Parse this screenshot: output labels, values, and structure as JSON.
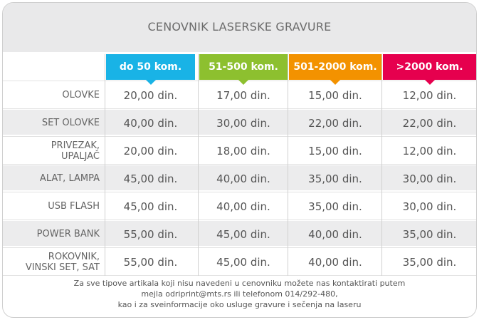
{
  "title": "CENOVNIK LASERSKE GRAVURE",
  "tiers": [
    {
      "label": "do 50 kom.",
      "color": "#19b3e6"
    },
    {
      "label": "51-500 kom.",
      "color": "#8dc02f"
    },
    {
      "label": "501-2000 kom.",
      "color": "#f39200"
    },
    {
      "label": ">2000 kom.",
      "color": "#e6004e"
    }
  ],
  "rows": [
    {
      "label": "OLOVKE",
      "prices": [
        "20,00 din.",
        "17,00 din.",
        "15,00 din.",
        "12,00 din."
      ]
    },
    {
      "label": "SET OLOVKE",
      "prices": [
        "40,00 din.",
        "30,00 din.",
        "22,00 din.",
        "22,00 din."
      ]
    },
    {
      "label": "PRIVEZAK,\nUPALJAČ",
      "prices": [
        "20,00 din.",
        "18,00 din.",
        "15,00 din.",
        "12,00 din."
      ]
    },
    {
      "label": "ALAT, LAMPA",
      "prices": [
        "45,00 din.",
        "40,00 din.",
        "35,00 din.",
        "30,00 din."
      ]
    },
    {
      "label": "USB FLASH",
      "prices": [
        "45,00 din.",
        "40,00 din.",
        "35,00 din.",
        "30,00 din."
      ]
    },
    {
      "label": "POWER BANK",
      "prices": [
        "55,00 din.",
        "45,00 din.",
        "40,00 din.",
        "35,00 din."
      ]
    },
    {
      "label": "ROKOVNIK,\nVINSKI SET, SAT",
      "prices": [
        "55,00 din.",
        "45,00 din.",
        "40,00 din.",
        "35,00 din."
      ]
    }
  ],
  "footer": {
    "line1": "Za sve tipove artikala koji nisu navedeni u cenovniku možete nas kontaktirati putem",
    "line2": "mejla odriprint@mts.rs ili telefonom 014/292-480,",
    "line3": "kao i za sveinformacije oko usluge gravure i sečenja na laseru"
  }
}
